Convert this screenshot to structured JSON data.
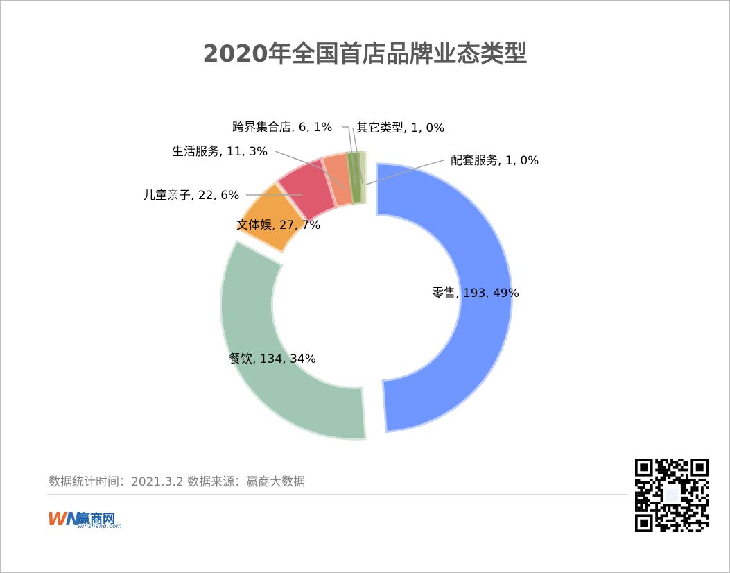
{
  "chart_data": {
    "type": "donut",
    "title": "2020年全国首店品牌业态类型",
    "slices": [
      {
        "name": "零售",
        "value": 193,
        "percent": "49%",
        "color": "#7096ff"
      },
      {
        "name": "餐饮",
        "value": 134,
        "percent": "34%",
        "color": "#a1c7b4"
      },
      {
        "name": "文体娱",
        "value": 27,
        "percent": "7%",
        "color": "#f0a54a"
      },
      {
        "name": "儿童亲子",
        "value": 22,
        "percent": "6%",
        "color": "#de5a6c"
      },
      {
        "name": "生活服务",
        "value": 11,
        "percent": "3%",
        "color": "#ee8e6f"
      },
      {
        "name": "跨界集合店",
        "value": 6,
        "percent": "1%",
        "color": "#8aa35a"
      },
      {
        "name": "其它类型",
        "value": 1,
        "percent": "0%",
        "color": "#cbd4a2"
      },
      {
        "name": "配套服务",
        "value": 1,
        "percent": "0%",
        "color": "#c8d1aa"
      }
    ],
    "label_format": "{name}, {value}, {percent}"
  },
  "footer": {
    "source_text": "数据统计时间：2021.3.2  数据来源：赢商大数据"
  },
  "logo": {
    "mark_w": "W",
    "mark_n": "N",
    "name": "赢商网",
    "url": "winshang.com"
  },
  "colors": {
    "title": "#595959",
    "footer_text": "#7f7f7f",
    "leader_line": "#a6a6a6"
  }
}
